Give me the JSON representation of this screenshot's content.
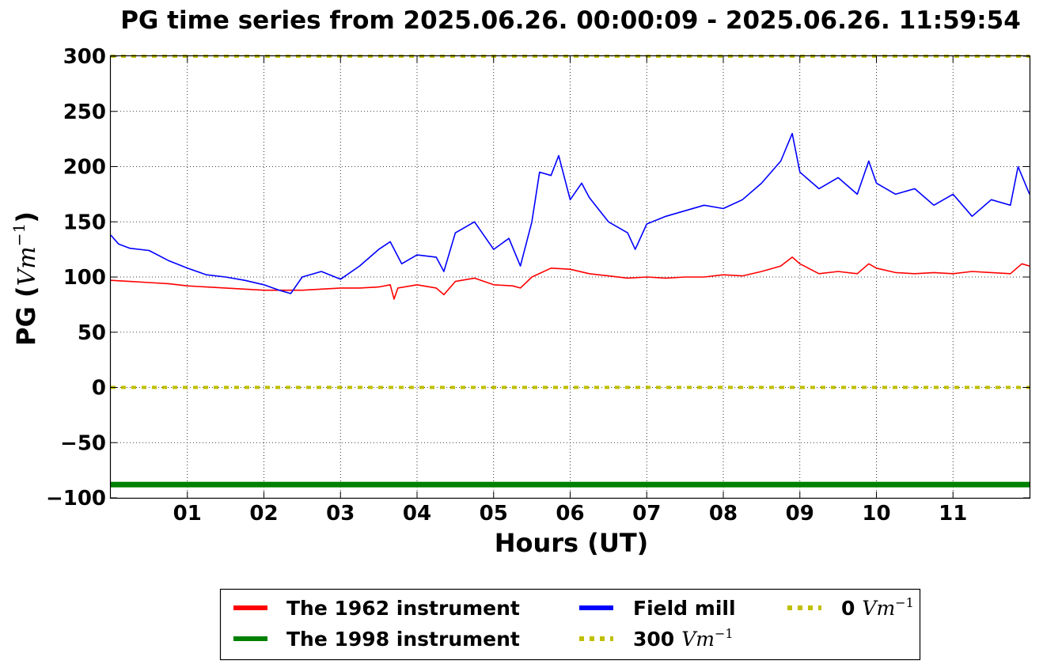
{
  "chart_data": {
    "type": "line",
    "title": "PG time series from 2025.06.26. 00:00:09 - 2025.06.26. 11:59:54",
    "xlabel": "Hours (UT)",
    "ylabel_prefix": "PG (",
    "ylabel_math": "Vm",
    "ylabel_exp": "−1",
    "ylabel_suffix": ")",
    "xlim": [
      0,
      12
    ],
    "ylim": [
      -100,
      300
    ],
    "grid": true,
    "legend_location": "below plot",
    "x_ticks": [
      1,
      2,
      3,
      4,
      5,
      6,
      7,
      8,
      9,
      10,
      11
    ],
    "x_tick_labels": [
      "01",
      "02",
      "03",
      "04",
      "05",
      "06",
      "07",
      "08",
      "09",
      "10",
      "11"
    ],
    "y_ticks": [
      -100,
      -50,
      0,
      50,
      100,
      150,
      200,
      250,
      300
    ],
    "y_tick_labels": [
      "−100",
      "−50",
      "0",
      "50",
      "100",
      "150",
      "200",
      "250",
      "300"
    ],
    "series": [
      {
        "name": "The 1962 instrument",
        "color": "#ff0000",
        "style": "solid",
        "x": [
          0,
          0.25,
          0.5,
          0.75,
          1.0,
          1.25,
          1.5,
          1.75,
          2.0,
          2.25,
          2.5,
          2.75,
          3.0,
          3.25,
          3.5,
          3.65,
          3.7,
          3.75,
          4.0,
          4.25,
          4.35,
          4.5,
          4.75,
          5.0,
          5.25,
          5.35,
          5.5,
          5.75,
          6.0,
          6.25,
          6.5,
          6.75,
          7.0,
          7.25,
          7.5,
          7.75,
          8.0,
          8.25,
          8.5,
          8.75,
          8.9,
          9.0,
          9.25,
          9.5,
          9.75,
          9.9,
          10.0,
          10.25,
          10.5,
          10.75,
          11.0,
          11.25,
          11.5,
          11.75,
          11.9,
          12.0
        ],
        "values": [
          97,
          96,
          95,
          94,
          92,
          91,
          90,
          89,
          88,
          88,
          88,
          89,
          90,
          90,
          91,
          93,
          80,
          90,
          93,
          90,
          84,
          96,
          99,
          93,
          92,
          90,
          100,
          108,
          107,
          103,
          101,
          99,
          100,
          99,
          100,
          100,
          102,
          101,
          105,
          110,
          118,
          112,
          103,
          105,
          103,
          112,
          108,
          104,
          103,
          104,
          103,
          105,
          104,
          103,
          112,
          110
        ]
      },
      {
        "name": "The 1998 instrument",
        "color": "#008000",
        "style": "solid",
        "x": [
          0,
          12
        ],
        "values": [
          -88,
          -88
        ]
      },
      {
        "name": "Field mill",
        "color": "#0000ff",
        "style": "solid",
        "x": [
          0,
          0.1,
          0.25,
          0.5,
          0.75,
          1.0,
          1.25,
          1.5,
          1.75,
          2.0,
          2.2,
          2.35,
          2.5,
          2.75,
          3.0,
          3.25,
          3.5,
          3.65,
          3.8,
          4.0,
          4.25,
          4.35,
          4.5,
          4.75,
          5.0,
          5.2,
          5.35,
          5.5,
          5.6,
          5.75,
          5.85,
          6.0,
          6.15,
          6.25,
          6.5,
          6.75,
          6.85,
          7.0,
          7.25,
          7.5,
          7.75,
          8.0,
          8.25,
          8.5,
          8.75,
          8.9,
          9.0,
          9.25,
          9.5,
          9.75,
          9.9,
          10.0,
          10.25,
          10.5,
          10.75,
          11.0,
          11.25,
          11.5,
          11.75,
          11.85,
          12.0
        ],
        "values": [
          138,
          130,
          126,
          124,
          115,
          108,
          102,
          100,
          97,
          93,
          88,
          85,
          100,
          105,
          98,
          110,
          125,
          132,
          112,
          120,
          118,
          105,
          140,
          150,
          125,
          135,
          110,
          150,
          195,
          192,
          210,
          170,
          185,
          172,
          150,
          140,
          125,
          148,
          155,
          160,
          165,
          162,
          170,
          185,
          205,
          230,
          195,
          180,
          190,
          175,
          205,
          185,
          175,
          180,
          165,
          175,
          155,
          170,
          165,
          200,
          175
        ]
      },
      {
        "name": "300 Vm−1",
        "color": "#bfbf00",
        "style": "dotted",
        "x": [
          0,
          12
        ],
        "values": [
          300,
          300
        ]
      },
      {
        "name": "0 Vm−1",
        "color": "#bfbf00",
        "style": "dotted",
        "x": [
          0,
          12
        ],
        "values": [
          0,
          0
        ]
      }
    ],
    "legend": [
      {
        "value": "0",
        "number": "",
        "math": "",
        "exp": "",
        "series_index": 0,
        "text": "The 1962 instrument"
      },
      {
        "series_index": 1,
        "text": "The 1998 instrument"
      },
      {
        "series_index": 2,
        "text": "Field mill"
      },
      {
        "series_index": 3,
        "number": "300",
        "math": "Vm",
        "exp": "−1"
      },
      {
        "series_index": 4,
        "number": "0",
        "math": "Vm",
        "exp": "−1"
      }
    ]
  }
}
